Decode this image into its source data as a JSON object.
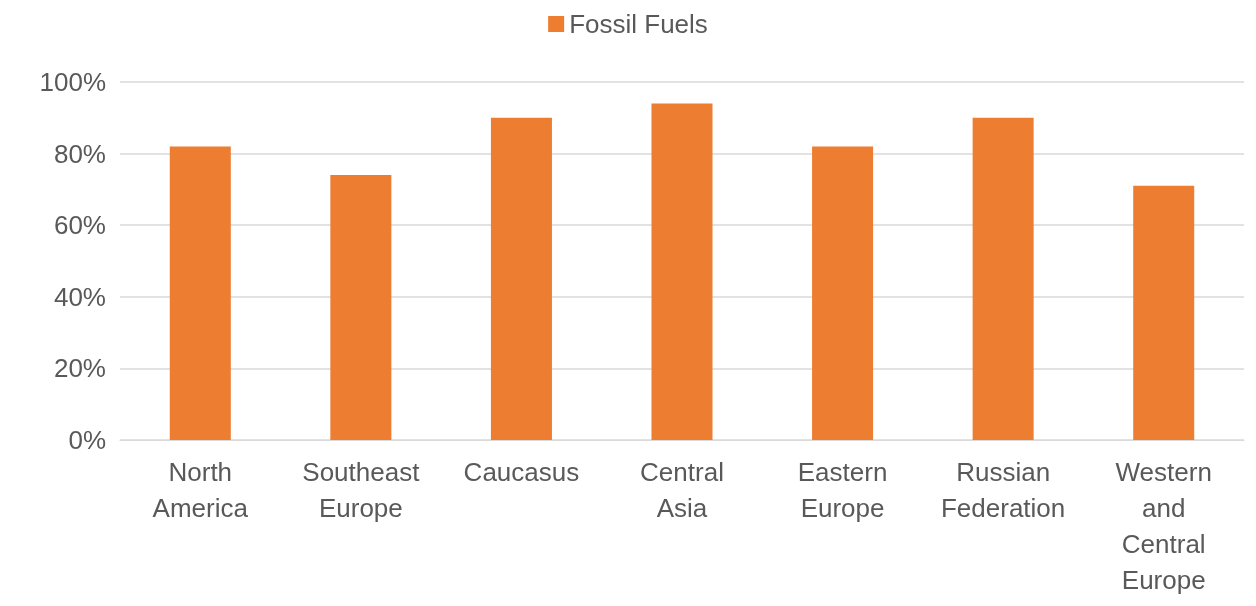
{
  "chart_data": {
    "type": "bar",
    "categories": [
      "North America",
      "Southeast Europe",
      "Caucasus",
      "Central Asia",
      "Eastern Europe",
      "Russian Federation",
      "Western and Central Europe"
    ],
    "series": [
      {
        "name": "Fossil Fuels",
        "color": "#ed7d31",
        "values": [
          82,
          74,
          90,
          94,
          82,
          90,
          71
        ]
      }
    ],
    "ylim": [
      0,
      100
    ],
    "yticks": [
      {
        "value": 0,
        "label": "0%"
      },
      {
        "value": 20,
        "label": "20%"
      },
      {
        "value": 40,
        "label": "40%"
      },
      {
        "value": 60,
        "label": "60%"
      },
      {
        "value": 80,
        "label": "80%"
      },
      {
        "value": 100,
        "label": "100%"
      }
    ],
    "grid": "y",
    "legend": "top"
  }
}
